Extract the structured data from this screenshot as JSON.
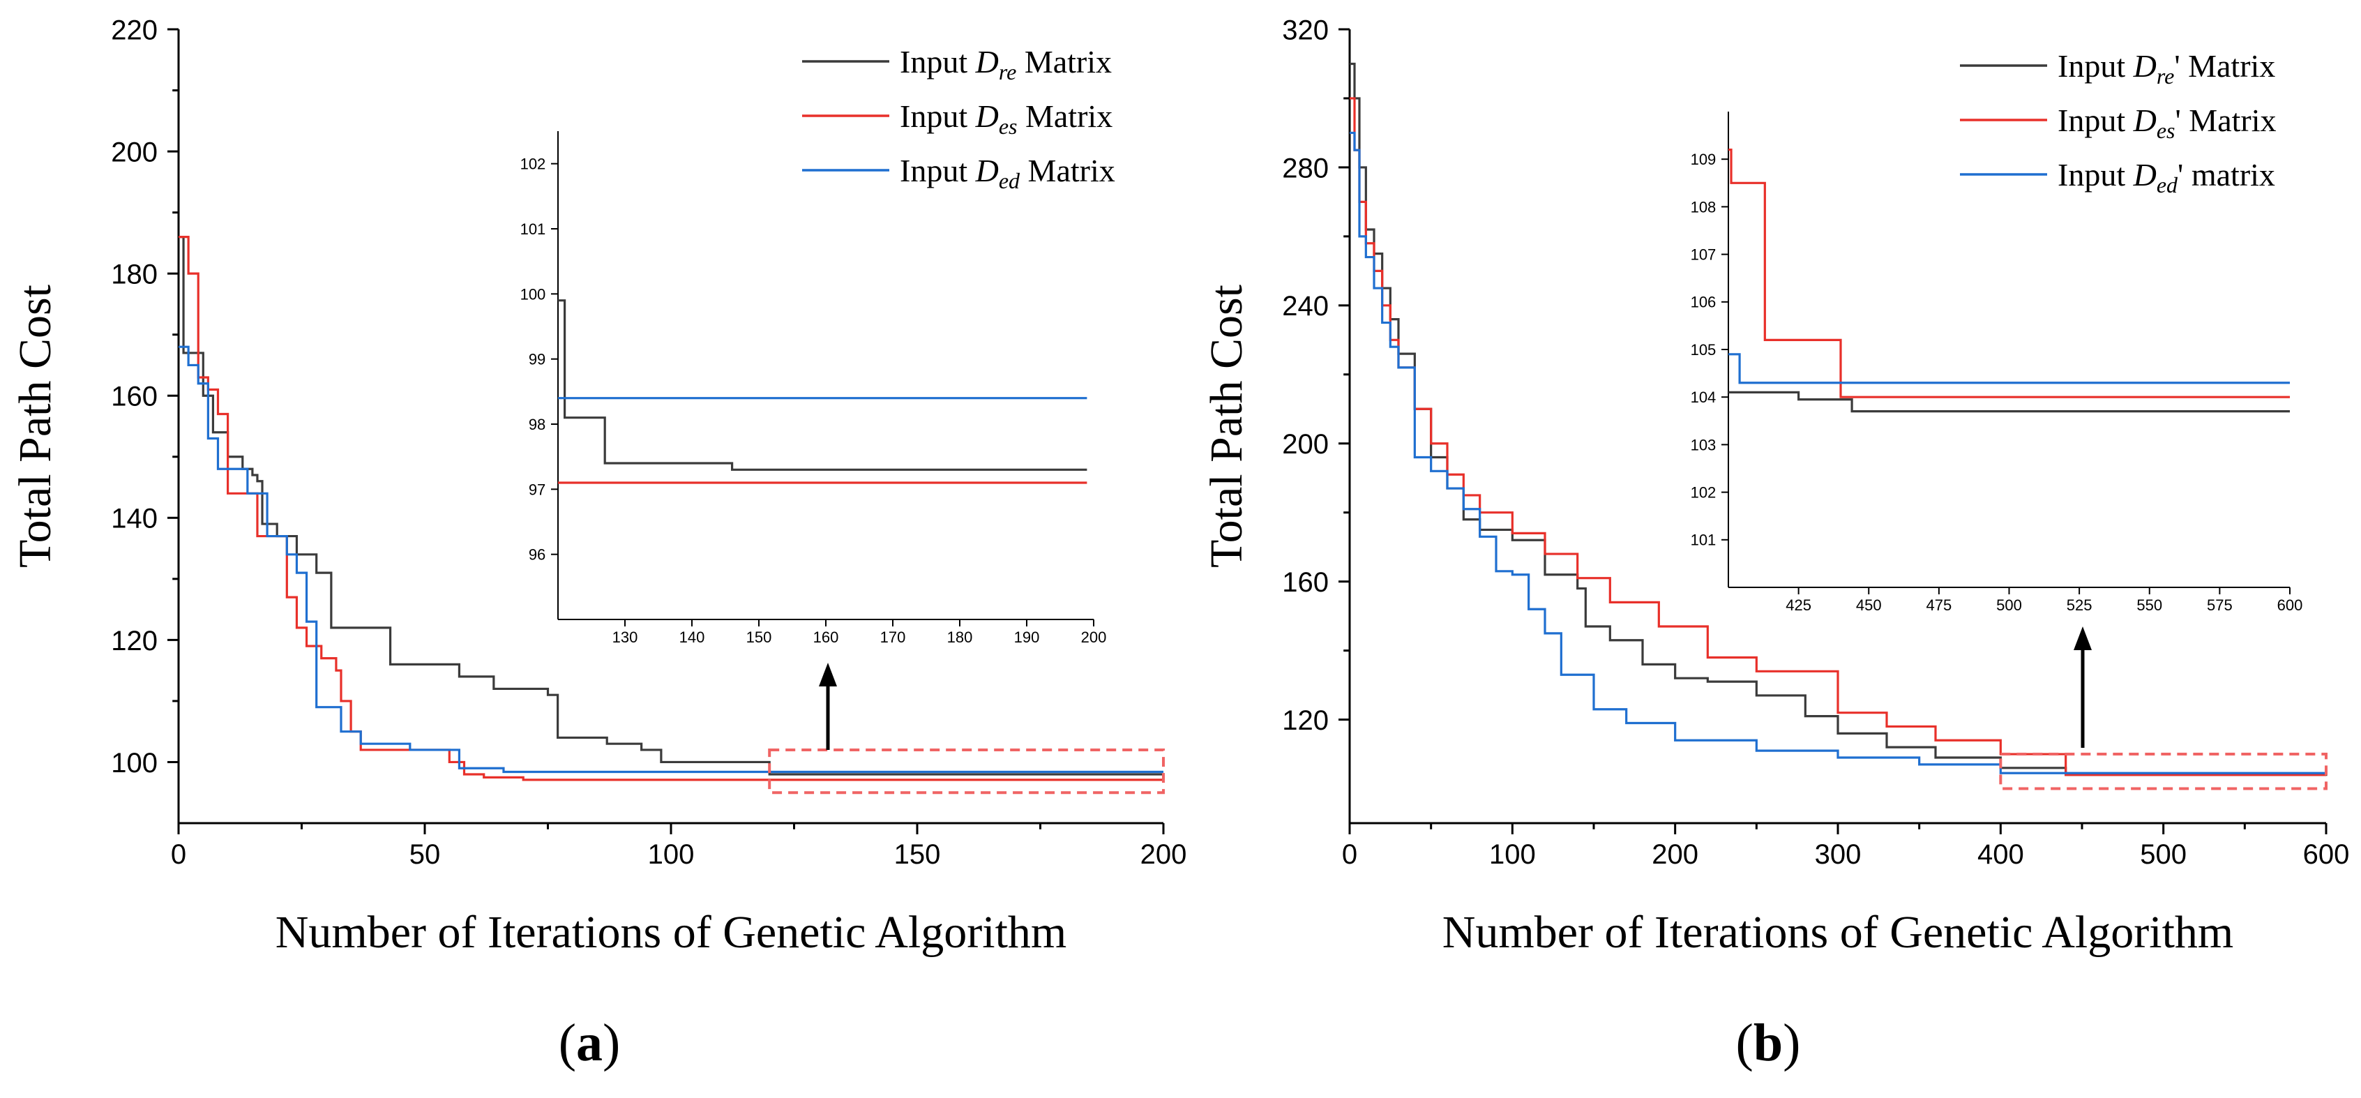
{
  "chart_data": [
    {
      "id": "a",
      "type": "line",
      "panel_label": "a",
      "xlabel": "Number of Iterations of Genetic Algorithm",
      "ylabel": "Total Path Cost",
      "xlim": [
        0,
        200
      ],
      "ylim": [
        90,
        220
      ],
      "xticks": [
        0,
        50,
        100,
        150,
        200
      ],
      "yticks": [
        100,
        120,
        140,
        160,
        180,
        200,
        220
      ],
      "legend_position": "top-right",
      "series": [
        {
          "name": "Input D_re Matrix",
          "legend": {
            "pre": "Input ",
            "sym": "D",
            "sub": "re",
            "post": " Matrix"
          },
          "color": "#3b3b3b",
          "x": [
            0,
            1,
            2,
            5,
            7,
            10,
            13,
            15,
            16,
            17,
            20,
            24,
            28,
            31,
            35,
            43,
            51,
            57,
            64,
            66,
            75,
            77,
            87,
            94,
            98,
            101,
            114,
            120,
            200
          ],
          "y": [
            186,
            167,
            167,
            160,
            154,
            150,
            148,
            147,
            146,
            139,
            137,
            134,
            131,
            122,
            122,
            116,
            116,
            114,
            112,
            112,
            111,
            104,
            103,
            102,
            100,
            100,
            100,
            98,
            97.3
          ]
        },
        {
          "name": "Input D_es Matrix",
          "legend": {
            "pre": "Input ",
            "sym": "D",
            "sub": "es",
            "post": " Matrix"
          },
          "color": "#e8302a",
          "x": [
            0,
            1,
            2,
            4,
            6,
            8,
            10,
            14,
            16,
            18,
            22,
            24,
            26,
            29,
            31,
            32,
            33,
            35,
            37,
            50,
            55,
            58,
            62,
            70,
            120,
            200
          ],
          "y": [
            186,
            186,
            180,
            163,
            161,
            157,
            144,
            144,
            137,
            137,
            127,
            122,
            119,
            117,
            117,
            115,
            110,
            105,
            102,
            102,
            100,
            98,
            97.5,
            97.1,
            97.1,
            97.1
          ]
        },
        {
          "name": "Input D_ed Matrix",
          "legend": {
            "pre": "Input ",
            "sym": "D",
            "sub": "ed",
            "post": " Matrix"
          },
          "color": "#1f6fd0",
          "x": [
            0,
            2,
            4,
            6,
            8,
            10,
            14,
            18,
            22,
            24,
            26,
            28,
            33,
            37,
            41,
            47,
            57,
            66,
            120,
            200
          ],
          "y": [
            168,
            165,
            162,
            153,
            148,
            148,
            144,
            137,
            134,
            131,
            123,
            109,
            105,
            103,
            103,
            102,
            99,
            98.4,
            98.4,
            98.4
          ]
        }
      ],
      "inset": {
        "xlim": [
          120,
          200
        ],
        "ylim": [
          95,
          102.5
        ],
        "xticks": [
          130,
          140,
          150,
          160,
          170,
          180,
          190,
          200
        ],
        "yticks": [
          96,
          97,
          98,
          99,
          100,
          101,
          102
        ],
        "series": [
          {
            "color": "#3b3b3b",
            "x": [
              120,
              121,
              121,
              127,
              127,
              146,
              146,
              199
            ],
            "y": [
              99.9,
              99.9,
              98.1,
              98.1,
              97.4,
              97.4,
              97.3,
              97.3
            ]
          },
          {
            "color": "#e8302a",
            "x": [
              120,
              199
            ],
            "y": [
              97.1,
              97.1
            ]
          },
          {
            "color": "#1f6fd0",
            "x": [
              120,
              199
            ],
            "y": [
              98.4,
              98.4
            ]
          }
        ]
      }
    },
    {
      "id": "b",
      "type": "line",
      "panel_label": "b",
      "xlabel": "Number of Iterations of Genetic Algorithm",
      "ylabel": "Total Path Cost",
      "xlim": [
        0,
        600
      ],
      "ylim": [
        90,
        320
      ],
      "xticks": [
        0,
        100,
        200,
        300,
        400,
        500,
        600
      ],
      "yticks": [
        120,
        160,
        200,
        240,
        280,
        320
      ],
      "legend_position": "top-right",
      "series": [
        {
          "name": "Input D_re' Matrix",
          "legend": {
            "pre": "Input ",
            "sym": "D",
            "sub": "re",
            "post": "' Matrix"
          },
          "color": "#3b3b3b",
          "x": [
            0,
            3,
            6,
            10,
            15,
            20,
            25,
            30,
            40,
            50,
            60,
            70,
            80,
            100,
            120,
            140,
            145,
            160,
            180,
            200,
            220,
            250,
            280,
            300,
            330,
            360,
            400,
            440,
            600
          ],
          "y": [
            310,
            300,
            280,
            262,
            255,
            245,
            236,
            226,
            210,
            196,
            187,
            178,
            175,
            172,
            162,
            158,
            147,
            143,
            136,
            132,
            131,
            127,
            121,
            116,
            112,
            109,
            106,
            104,
            103.7
          ]
        },
        {
          "name": "Input D_es' Matrix",
          "legend": {
            "pre": "Input ",
            "sym": "D",
            "sub": "es",
            "post": "' Matrix"
          },
          "color": "#e8302a",
          "x": [
            0,
            3,
            6,
            10,
            15,
            20,
            25,
            30,
            40,
            50,
            60,
            70,
            80,
            100,
            120,
            140,
            160,
            190,
            220,
            250,
            300,
            330,
            360,
            400,
            440,
            600
          ],
          "y": [
            300,
            285,
            270,
            258,
            250,
            240,
            230,
            222,
            210,
            200,
            191,
            185,
            180,
            174,
            168,
            161,
            154,
            147,
            138,
            134,
            122,
            118,
            114,
            110,
            104,
            104
          ]
        },
        {
          "name": "Input D_ed' matrix",
          "legend": {
            "pre": "Input ",
            "sym": "D",
            "sub": "ed",
            "post": "' matrix"
          },
          "color": "#1f6fd0",
          "x": [
            0,
            3,
            6,
            10,
            15,
            20,
            25,
            30,
            40,
            50,
            60,
            70,
            80,
            90,
            100,
            110,
            120,
            130,
            150,
            170,
            200,
            250,
            300,
            350,
            400,
            600
          ],
          "y": [
            290,
            285,
            260,
            254,
            245,
            235,
            228,
            222,
            196,
            192,
            187,
            181,
            173,
            163,
            162,
            152,
            145,
            133,
            123,
            119,
            114,
            111,
            109,
            107,
            104.5,
            104.5
          ]
        }
      ],
      "inset": {
        "xlim": [
          400,
          600
        ],
        "ylim": [
          100,
          110
        ],
        "xticks": [
          425,
          450,
          475,
          500,
          525,
          550,
          575,
          600
        ],
        "yticks": [
          101,
          102,
          103,
          104,
          105,
          106,
          107,
          108,
          109
        ],
        "series": [
          {
            "color": "#e8302a",
            "x": [
              400,
              401,
              401,
              413,
              413,
              440,
              440,
              600
            ],
            "y": [
              109.2,
              109.2,
              108.5,
              108.5,
              105.2,
              105.2,
              104,
              104
            ]
          },
          {
            "color": "#1f6fd0",
            "x": [
              400,
              404,
              404,
              600
            ],
            "y": [
              104.9,
              104.9,
              104.3,
              104.3
            ]
          },
          {
            "color": "#3b3b3b",
            "x": [
              400,
              425,
              425,
              444,
              444,
              600
            ],
            "y": [
              104.1,
              104.1,
              103.95,
              103.95,
              103.7,
              103.7
            ]
          }
        ]
      }
    }
  ]
}
